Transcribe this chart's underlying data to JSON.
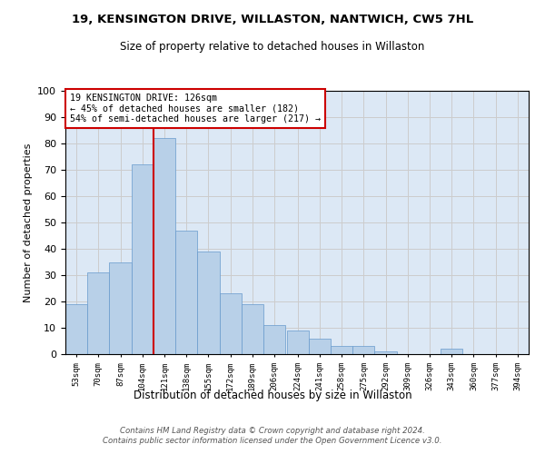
{
  "title": "19, KENSINGTON DRIVE, WILLASTON, NANTWICH, CW5 7HL",
  "subtitle": "Size of property relative to detached houses in Willaston",
  "xlabel": "Distribution of detached houses by size in Willaston",
  "ylabel": "Number of detached properties",
  "bar_values": [
    19,
    31,
    35,
    72,
    82,
    47,
    39,
    23,
    19,
    11,
    9,
    6,
    3,
    3,
    1,
    0,
    0,
    2,
    0,
    0
  ],
  "bin_labels": [
    "53sqm",
    "70sqm",
    "87sqm",
    "104sqm",
    "121sqm",
    "138sqm",
    "155sqm",
    "172sqm",
    "189sqm",
    "206sqm",
    "224sqm",
    "241sqm",
    "258sqm",
    "275sqm",
    "292sqm",
    "309sqm",
    "326sqm",
    "343sqm",
    "360sqm",
    "377sqm",
    "394sqm"
  ],
  "bar_color": "#b8d0e8",
  "bar_edge_color": "#6699cc",
  "annotation_text": "19 KENSINGTON DRIVE: 126sqm\n← 45% of detached houses are smaller (182)\n54% of semi-detached houses are larger (217) →",
  "annotation_box_color": "#ffffff",
  "annotation_box_edge": "#cc0000",
  "vline_color": "#cc0000",
  "grid_color": "#cccccc",
  "background_color": "#dce8f5",
  "ylim": [
    0,
    100
  ],
  "yticks": [
    0,
    10,
    20,
    30,
    40,
    50,
    60,
    70,
    80,
    90,
    100
  ],
  "footnote": "Contains HM Land Registry data © Crown copyright and database right 2024.\nContains public sector information licensed under the Open Government Licence v3.0.",
  "bin_edges": [
    53,
    70,
    87,
    104,
    121,
    138,
    155,
    172,
    189,
    206,
    224,
    241,
    258,
    275,
    292,
    309,
    326,
    343,
    360,
    377,
    394
  ],
  "bin_width": 17
}
